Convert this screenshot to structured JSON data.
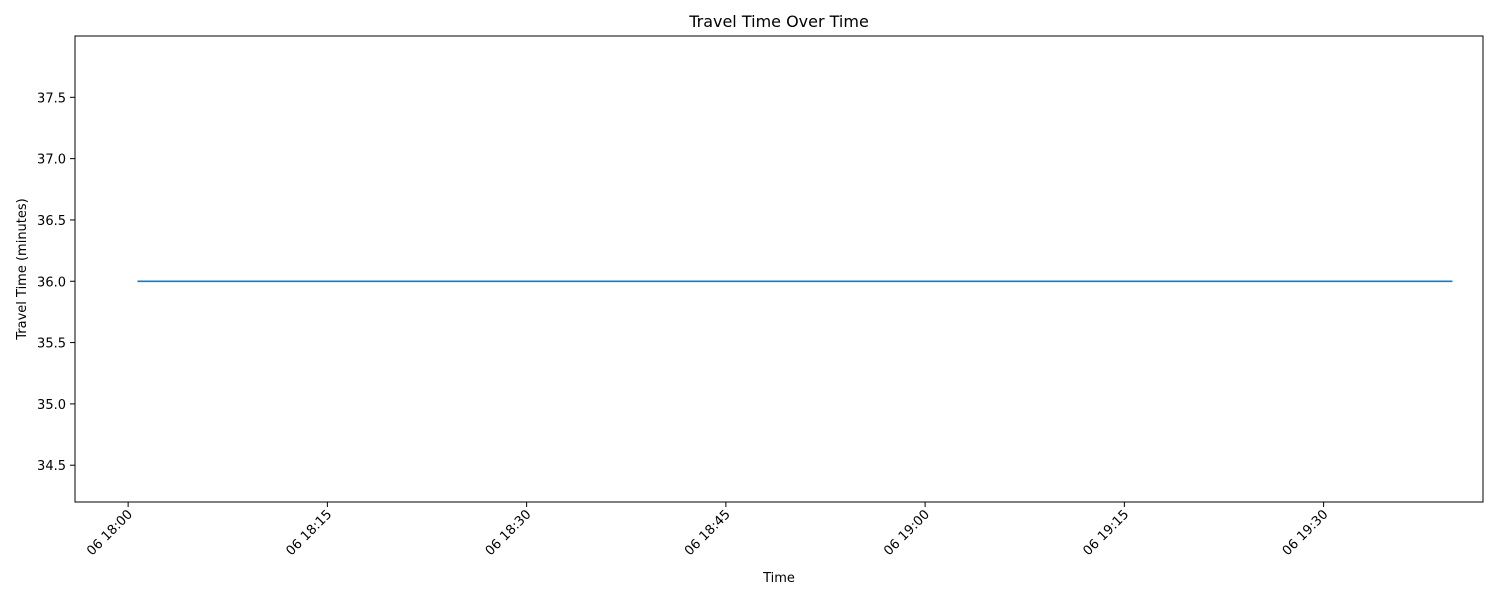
{
  "chart_data": {
    "type": "line",
    "title": "Travel Time Over Time",
    "xlabel": "Time",
    "ylabel": "Travel Time (minutes)",
    "x": [
      "06 18:00:42",
      "06 19:39:42"
    ],
    "series": [
      {
        "values": [
          36.0,
          36.0
        ],
        "color": "#1f77b4"
      }
    ],
    "xlim": [
      "06 17:56:00",
      "06 19:42:00"
    ],
    "ylim": [
      34.2,
      38.0
    ],
    "x_tick_labels": [
      "06 18:00",
      "06 18:15",
      "06 18:30",
      "06 18:45",
      "06 19:00",
      "06 19:15",
      "06 19:30"
    ],
    "y_tick_labels": [
      "34.5",
      "35.0",
      "35.5",
      "36.0",
      "36.5",
      "37.0",
      "37.5"
    ],
    "grid": false,
    "x_tick_rotation": "45"
  }
}
